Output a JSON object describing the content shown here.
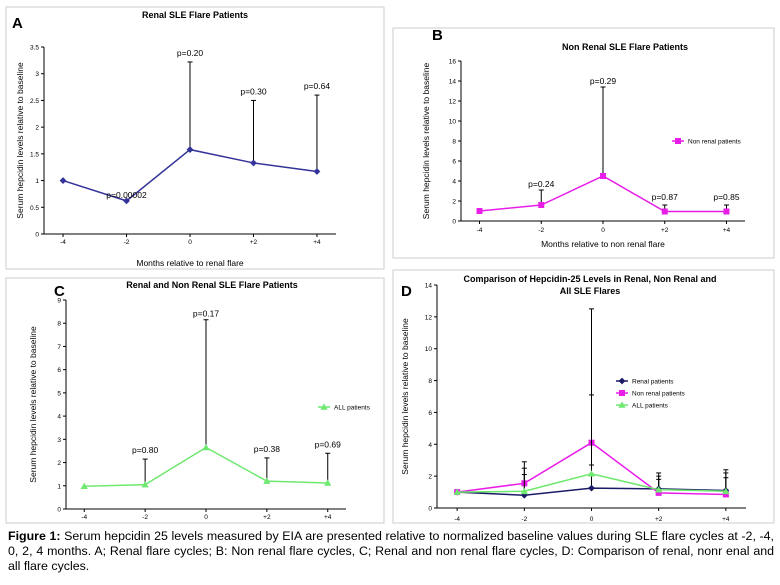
{
  "caption": {
    "label": "Figure 1:",
    "text": "Serum hepcidin 25 levels measured by EIA are presented relative to normalized baseline values during SLE flare cycles at -2, -4, 0, 2, 4 months.  A;  Renal flare cycles; B: Non renal flare cycles, C;  Renal and non renal flare cycles, D:  Comparison of renal, nonr enal and all flare cycles."
  },
  "chart_data": [
    {
      "panel": "A",
      "type": "line",
      "title": "Renal SLE Flare Patients",
      "ylabel": "Serum hepcidin levels relative to baseline",
      "xlabel": "Months relative to renal flare",
      "categories": [
        "-4",
        "-2",
        "0",
        "+2",
        "+4"
      ],
      "yticks": [
        "0",
        "0.5",
        "1",
        "1.5",
        "2",
        "2.5",
        "3",
        "3.5"
      ],
      "ylim": [
        0,
        3.5
      ],
      "legend": null,
      "series": [
        {
          "name": "Renal patients",
          "color": "#333399",
          "marker": "diamond",
          "values": [
            1.0,
            0.62,
            1.58,
            1.33,
            1.17
          ],
          "err_top": [
            null,
            null,
            3.22,
            2.5,
            2.6
          ]
        }
      ],
      "annotations": [
        {
          "x": "-2",
          "text": "p=0.00002"
        },
        {
          "x": "0",
          "text": "p=0.20"
        },
        {
          "x": "+2",
          "text": "p=0.30"
        },
        {
          "x": "+4",
          "text": "p=0.64"
        }
      ]
    },
    {
      "panel": "B",
      "type": "line",
      "title": "Non Renal SLE Flare Patients",
      "ylabel": "Serum hepcidin levels relative to baseline",
      "xlabel": "Months relative to non renal flare",
      "categories": [
        "-4",
        "-2",
        "0",
        "+2",
        "+4"
      ],
      "yticks": [
        "0",
        "2",
        "4",
        "6",
        "8",
        "10",
        "12",
        "14",
        "16"
      ],
      "ylim": [
        0,
        16
      ],
      "legend": "right",
      "series": [
        {
          "name": "Non renal patients",
          "color": "#e81ee8",
          "marker": "square",
          "values": [
            1.0,
            1.6,
            4.5,
            0.95,
            0.95
          ],
          "err_top": [
            null,
            3.1,
            13.4,
            1.6,
            1.6
          ]
        }
      ],
      "annotations": [
        {
          "x": "-2",
          "text": "p=0.24"
        },
        {
          "x": "0",
          "text": "p=0.29"
        },
        {
          "x": "+2",
          "text": "p=0.87"
        },
        {
          "x": "+4",
          "text": "p=0.85"
        }
      ]
    },
    {
      "panel": "C",
      "type": "line",
      "title": "Renal and Non Renal SLE Flare Patients",
      "ylabel": "Serum hepcidin levels relative to baseline",
      "xlabel": "",
      "categories": [
        "-4",
        "-2",
        "0",
        "+2",
        "+4"
      ],
      "yticks": [
        "0",
        "1",
        "2",
        "3",
        "4",
        "5",
        "6",
        "7",
        "8",
        "9"
      ],
      "ylim": [
        0,
        9
      ],
      "legend": "right",
      "series": [
        {
          "name": "ALL patients",
          "color": "#6ee86e",
          "marker": "triangle",
          "values": [
            0.98,
            1.05,
            2.65,
            1.2,
            1.12
          ],
          "err_top": [
            null,
            2.15,
            8.15,
            2.2,
            2.4
          ]
        }
      ],
      "annotations": [
        {
          "x": "-2",
          "text": "p=0.80"
        },
        {
          "x": "0",
          "text": "p=0.17"
        },
        {
          "x": "+2",
          "text": "p=0.38"
        },
        {
          "x": "+4",
          "text": "p=0.69"
        }
      ]
    },
    {
      "panel": "D",
      "type": "line",
      "title": "Comparison of Hepcidin-25 Levels in Renal, Non Renal and",
      "title2": "All SLE Flares",
      "ylabel": "Serum hepcidin levels relative to baseline",
      "xlabel": "",
      "categories": [
        "-4",
        "-2",
        "0",
        "+2",
        "+4"
      ],
      "yticks": [
        "0",
        "2",
        "4",
        "6",
        "8",
        "10",
        "12",
        "14"
      ],
      "ylim": [
        0,
        14
      ],
      "legend": "right",
      "series": [
        {
          "name": "Renal patients",
          "color": "#1a1a66",
          "marker": "diamond",
          "values": [
            1.0,
            0.8,
            1.25,
            1.2,
            1.1
          ],
          "err_top": [
            null,
            2.1,
            2.7,
            2.0,
            2.2
          ]
        },
        {
          "name": "Non renal patients",
          "color": "#e81ee8",
          "marker": "square",
          "values": [
            1.0,
            1.55,
            4.1,
            0.95,
            0.85
          ],
          "err_top": [
            null,
            2.9,
            12.5,
            2.2,
            2.4
          ]
        },
        {
          "name": "ALL patients",
          "color": "#6ee86e",
          "marker": "triangle",
          "values": [
            1.0,
            1.05,
            2.15,
            1.15,
            1.05
          ],
          "err_top": [
            null,
            2.5,
            7.1,
            1.8,
            1.9
          ]
        }
      ],
      "annotations": []
    }
  ]
}
